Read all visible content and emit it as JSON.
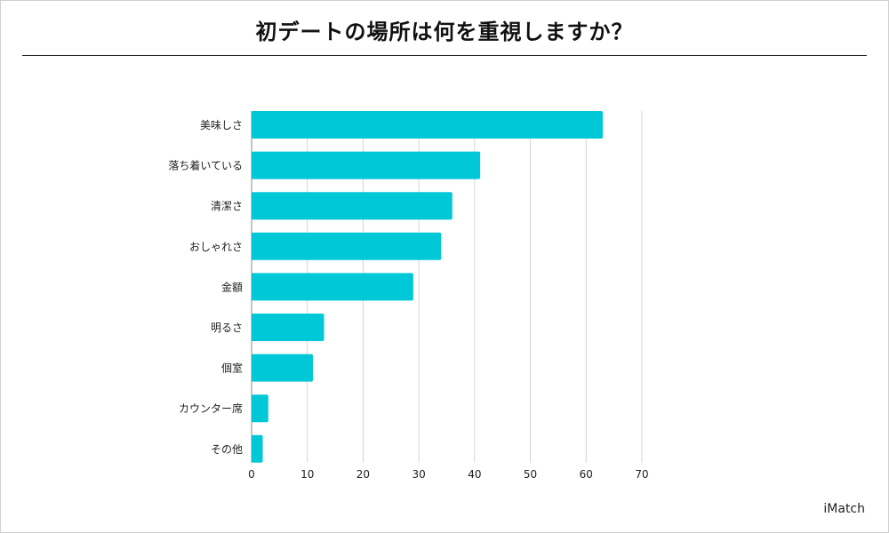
{
  "chart_data": {
    "type": "bar",
    "orientation": "horizontal",
    "title": "初デートの場所は何を重視しますか？",
    "categories": [
      "美味しさ",
      "落ち着いている",
      "清潔さ",
      "おしゃれさ",
      "金額",
      "明るさ",
      "個室",
      "カウンター席",
      "その他"
    ],
    "values": [
      63,
      41,
      36,
      34,
      29,
      13,
      11,
      3,
      2
    ],
    "xlim": [
      0,
      70
    ],
    "xticks": [
      0,
      10,
      20,
      30,
      40,
      50,
      60,
      70
    ],
    "xlabel": "",
    "ylabel": "",
    "grid": true,
    "bar_color": "#00c8d7"
  },
  "brand": "iMatch"
}
